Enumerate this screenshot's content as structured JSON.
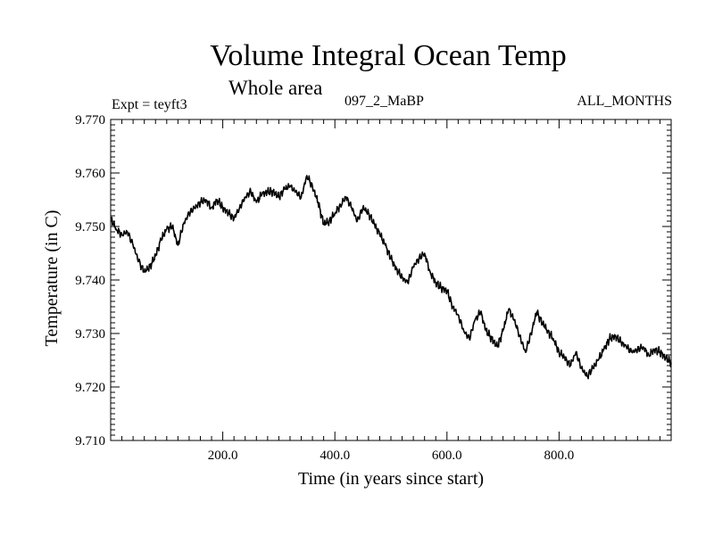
{
  "header": {
    "title": "Volume Integral Ocean Temp",
    "subtitle": "Whole area",
    "expt_label": "Expt = teyft3",
    "case_label": "097_2_MaBP",
    "months_label": "ALL_MONTHS"
  },
  "chart_data": {
    "type": "line",
    "title": "Volume Integral Ocean Temp",
    "subtitle": "Whole area",
    "xlabel": "Time (in years since start)",
    "ylabel": "Temperature (in C)",
    "xlim": [
      0,
      1000
    ],
    "ylim": [
      9.71,
      9.77
    ],
    "xticks": [
      200,
      400,
      600,
      800
    ],
    "xtick_labels": [
      "200.0",
      "400.0",
      "600.0",
      "800.0"
    ],
    "yticks": [
      9.71,
      9.72,
      9.73,
      9.74,
      9.75,
      9.76,
      9.77
    ],
    "ytick_labels": [
      "9.710",
      "9.720",
      "9.730",
      "9.740",
      "9.750",
      "9.760",
      "9.770"
    ],
    "grid": false,
    "line_color": "#000000",
    "series": [
      {
        "name": "teyft3",
        "x": [
          0,
          10,
          20,
          30,
          40,
          50,
          60,
          70,
          80,
          90,
          100,
          110,
          120,
          130,
          140,
          150,
          160,
          170,
          180,
          190,
          200,
          210,
          220,
          230,
          240,
          250,
          260,
          270,
          280,
          290,
          300,
          310,
          320,
          330,
          340,
          350,
          360,
          370,
          380,
          390,
          400,
          410,
          420,
          430,
          440,
          450,
          460,
          470,
          480,
          490,
          500,
          510,
          520,
          530,
          540,
          550,
          560,
          570,
          580,
          590,
          600,
          610,
          620,
          630,
          640,
          650,
          660,
          670,
          680,
          690,
          700,
          710,
          720,
          730,
          740,
          750,
          760,
          770,
          780,
          790,
          800,
          810,
          820,
          830,
          840,
          850,
          860,
          870,
          880,
          890,
          900,
          910,
          920,
          930,
          940,
          950,
          960,
          970,
          980,
          990,
          1000
        ],
        "values": [
          9.7515,
          9.7495,
          9.7485,
          9.749,
          9.7465,
          9.7435,
          9.7415,
          9.7425,
          9.7445,
          9.7475,
          9.7495,
          9.75,
          9.7465,
          9.7505,
          9.7525,
          9.7535,
          9.7545,
          9.755,
          9.7535,
          9.755,
          9.7535,
          9.7525,
          9.7515,
          9.7535,
          9.7555,
          9.7565,
          9.7545,
          9.756,
          9.7565,
          9.7565,
          9.7555,
          9.757,
          9.7575,
          9.7565,
          9.7555,
          9.7595,
          9.7575,
          9.7545,
          9.7505,
          9.751,
          9.7525,
          9.754,
          9.7555,
          9.7535,
          9.751,
          9.7535,
          9.7525,
          9.7505,
          9.7485,
          9.7465,
          9.744,
          9.742,
          9.7405,
          9.7395,
          9.7425,
          9.744,
          9.745,
          9.7415,
          9.7395,
          9.7385,
          9.738,
          9.735,
          9.7335,
          9.7305,
          9.729,
          9.7325,
          9.734,
          9.7305,
          9.729,
          9.7275,
          9.7305,
          9.7345,
          9.7325,
          9.7295,
          9.7265,
          9.73,
          9.734,
          9.732,
          9.7305,
          9.729,
          9.7265,
          9.7255,
          9.724,
          9.7265,
          9.7235,
          9.722,
          9.7235,
          9.725,
          9.727,
          9.729,
          9.7295,
          9.7285,
          9.7275,
          9.7265,
          9.727,
          9.7275,
          9.726,
          9.727,
          9.7265,
          9.7255,
          9.7245
        ]
      }
    ]
  }
}
